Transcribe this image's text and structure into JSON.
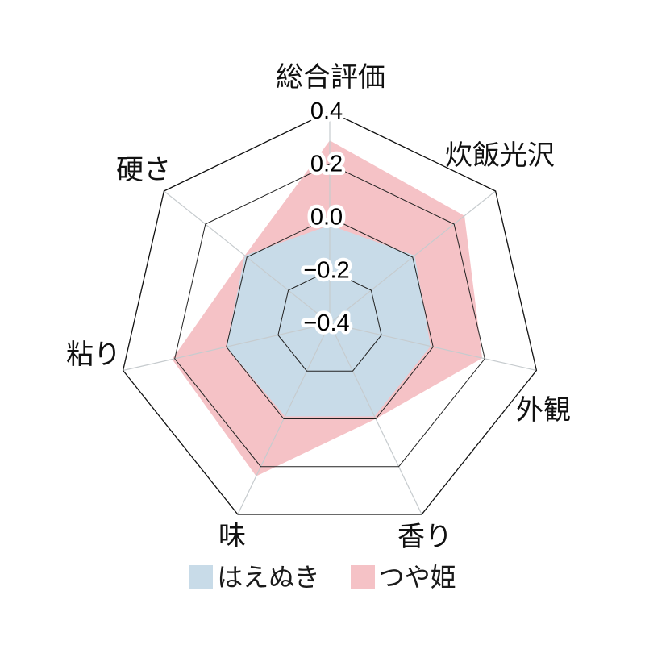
{
  "chart_data": {
    "type": "radar",
    "title": "",
    "categories": [
      "総合評価",
      "炊飯光沢",
      "外観",
      "香り",
      "味",
      "粘り",
      "硬さ"
    ],
    "series": [
      {
        "name": "はえぬき",
        "color": "#c8dbe8",
        "values": [
          -0.03,
          0.01,
          -0.01,
          -0.01,
          -0.01,
          0.0,
          0.01
        ]
      },
      {
        "name": "つや姫",
        "color": "#f5c2c6",
        "values": [
          0.29,
          0.25,
          0.19,
          0.0,
          0.24,
          0.21,
          0.01
        ]
      }
    ],
    "radial_axis": {
      "min": -0.4,
      "max": 0.4,
      "ticks": [
        -0.4,
        -0.2,
        0.0,
        0.2,
        0.4
      ],
      "tick_labels": [
        "−0.4",
        "−0.2",
        "0.0",
        "0.2",
        "0.4"
      ],
      "grid_rings": [
        -0.2,
        0.0,
        0.2,
        0.4
      ]
    },
    "legend": {
      "position": "bottom",
      "items": [
        "はえぬき",
        "つや姫"
      ]
    },
    "grid": true
  },
  "colors": {
    "background": "#ffffff",
    "grid_ring": "#222222",
    "outer_ring": "#111111",
    "spoke": "#c6cbce",
    "tick_text": "#000000",
    "label_text": "#111111"
  }
}
